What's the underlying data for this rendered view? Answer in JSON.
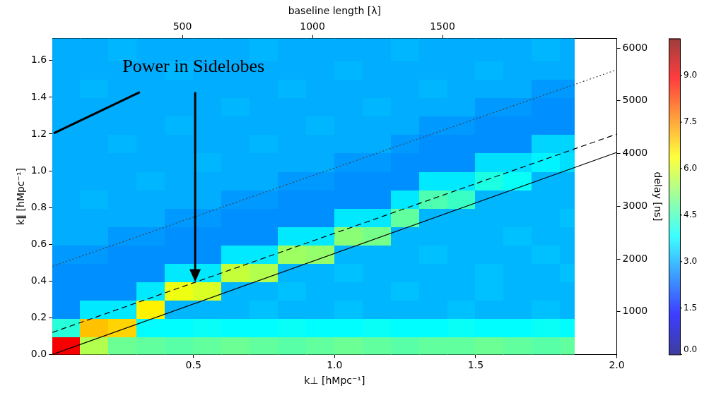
{
  "chart_data": {
    "type": "heatmap",
    "x_label": "k⊥ [hMpc⁻¹]",
    "y_label": "k∥ [hMpc⁻¹]",
    "x2_label": "baseline length [λ]",
    "y2_label": "delay [ns]",
    "xlim": [
      0,
      2.0
    ],
    "xticks": [
      0.5,
      {
        "value": 1,
        "label": "1.0"
      },
      1.5,
      {
        "value": 2,
        "label": "2.0"
      }
    ],
    "ylim": [
      0,
      1.72
    ],
    "yticks": [
      {
        "value": 0,
        "label": "0.0"
      },
      0.2,
      0.4,
      0.6,
      0.8,
      {
        "value": 1,
        "label": "1.0"
      },
      1.2,
      1.4,
      1.6
    ],
    "x2lim": [
      0,
      2170
    ],
    "x2ticks": [
      500,
      1000,
      1500
    ],
    "y2lim": [
      190,
      6180
    ],
    "y2ticks": [
      1000,
      2000,
      3000,
      4000,
      5000,
      6000
    ],
    "grid": false,
    "x_bins": [
      0,
      0.1,
      0.2,
      0.3,
      0.4,
      0.5,
      0.6,
      0.7,
      0.8,
      0.9,
      1.0,
      1.1,
      1.2,
      1.3,
      1.4,
      1.5,
      1.6,
      1.7,
      1.8,
      1.85
    ],
    "y_bins": [
      0,
      0.1,
      0.2,
      0.3,
      0.4,
      0.5,
      0.6,
      0.7,
      0.8,
      0.9,
      1.0,
      1.1,
      1.2,
      1.3,
      1.4,
      1.5,
      1.6,
      1.72
    ],
    "cells": [
      [
        9.0,
        5.6,
        4.9,
        4.8,
        4.7,
        4.8,
        4.9,
        4.8,
        4.7,
        4.8,
        4.9,
        4.8,
        4.7,
        4.8,
        4.8,
        4.9,
        4.8,
        4.7,
        4.8
      ],
      [
        4.2,
        7.0,
        6.8,
        3.8,
        3.8,
        3.9,
        3.8,
        3.8,
        3.9,
        3.8,
        3.8,
        3.9,
        3.8,
        3.8,
        3.9,
        3.8,
        3.8,
        3.9,
        3.8
      ],
      [
        2.7,
        3.6,
        3.6,
        6.5,
        3.1,
        3.1,
        3.1,
        3.2,
        3.1,
        3.1,
        3.2,
        3.1,
        3.1,
        3.1,
        3.2,
        3.1,
        3.1,
        3.2,
        3.1
      ],
      [
        2.7,
        2.7,
        2.7,
        3.6,
        6.2,
        6.0,
        3.1,
        3.1,
        3.2,
        3.1,
        3.1,
        3.1,
        3.2,
        3.1,
        3.1,
        3.2,
        3.1,
        3.1,
        3.1
      ],
      [
        2.7,
        2.7,
        2.7,
        2.7,
        3.6,
        3.6,
        5.8,
        5.6,
        3.1,
        3.1,
        3.2,
        3.1,
        3.1,
        3.1,
        3.1,
        3.2,
        3.1,
        3.1,
        3.2
      ],
      [
        2.8,
        2.8,
        2.7,
        2.7,
        2.7,
        2.7,
        3.6,
        3.6,
        5.4,
        5.3,
        3.1,
        3.1,
        3.1,
        3.2,
        3.1,
        3.1,
        3.1,
        3.2,
        3.1
      ],
      [
        3.0,
        3.0,
        2.8,
        2.8,
        2.7,
        2.7,
        2.7,
        2.7,
        3.6,
        3.6,
        5.2,
        5.0,
        3.1,
        3.1,
        3.1,
        3.1,
        3.2,
        3.1,
        3.1
      ],
      [
        3.0,
        3.0,
        3.0,
        3.0,
        2.8,
        2.8,
        2.7,
        2.7,
        2.7,
        2.7,
        3.6,
        3.6,
        4.8,
        3.1,
        3.1,
        3.1,
        3.1,
        3.1,
        3.2
      ],
      [
        3.0,
        3.1,
        3.0,
        3.0,
        3.0,
        3.0,
        2.8,
        2.8,
        2.7,
        2.7,
        2.7,
        2.7,
        3.6,
        4.6,
        4.4,
        3.1,
        3.1,
        3.1,
        3.1
      ],
      [
        3.0,
        3.0,
        3.0,
        3.1,
        3.0,
        3.0,
        3.0,
        3.0,
        2.8,
        2.8,
        2.7,
        2.7,
        2.7,
        3.6,
        3.6,
        4.1,
        3.9,
        3.1,
        3.1
      ],
      [
        3.0,
        3.0,
        3.0,
        3.0,
        3.0,
        3.1,
        3.0,
        3.0,
        3.0,
        3.0,
        2.8,
        2.8,
        2.7,
        2.7,
        2.7,
        3.5,
        3.5,
        3.7,
        3.5
      ],
      [
        3.0,
        3.0,
        3.1,
        3.0,
        3.0,
        3.0,
        3.0,
        3.1,
        3.0,
        3.0,
        3.0,
        3.0,
        2.8,
        2.7,
        2.7,
        2.7,
        2.7,
        3.4,
        3.4
      ],
      [
        3.0,
        3.0,
        3.0,
        3.0,
        3.1,
        3.0,
        3.0,
        3.0,
        3.0,
        3.1,
        3.0,
        3.0,
        3.0,
        2.8,
        2.8,
        2.7,
        2.7,
        2.7,
        2.7
      ],
      [
        3.0,
        3.0,
        3.0,
        3.0,
        3.0,
        3.0,
        3.1,
        3.0,
        3.0,
        3.0,
        3.0,
        3.1,
        3.0,
        3.0,
        3.0,
        2.8,
        2.8,
        2.7,
        2.7
      ],
      [
        3.0,
        3.1,
        3.0,
        3.0,
        3.0,
        3.0,
        3.0,
        3.0,
        3.1,
        3.0,
        3.0,
        3.0,
        3.0,
        3.1,
        3.0,
        3.0,
        3.0,
        2.8,
        2.8
      ],
      [
        3.0,
        3.0,
        3.0,
        3.0,
        3.1,
        3.0,
        3.0,
        3.0,
        3.0,
        3.0,
        3.1,
        3.0,
        3.0,
        3.0,
        3.0,
        3.1,
        3.0,
        3.0,
        3.0
      ],
      [
        3.0,
        3.0,
        3.1,
        3.0,
        3.0,
        3.0,
        3.0,
        3.1,
        3.0,
        3.0,
        3.0,
        3.0,
        3.1,
        3.0,
        3.0,
        3.0,
        3.0,
        3.1,
        3.0
      ]
    ],
    "colorbar_range": [
      0,
      10.2
    ],
    "colorbar_ticks": [
      {
        "value": 0,
        "label": "0.0"
      },
      1.5,
      {
        "value": 3,
        "label": "3.0"
      },
      4.5,
      {
        "value": 6,
        "label": "6.0"
      },
      7.5,
      {
        "value": 9,
        "label": "9.0"
      }
    ],
    "series": [
      {
        "type": "line",
        "color": "#000000",
        "line_style": "solid",
        "x": [
          0,
          2.0
        ],
        "values": [
          0,
          1.1
        ]
      },
      {
        "type": "line",
        "color": "#000000",
        "line_style": "dashed",
        "x": [
          0,
          2.0
        ],
        "values": [
          0.12,
          1.2
        ]
      },
      {
        "type": "line",
        "color": "#444444",
        "line_style": "dotted",
        "x": [
          0,
          2.0
        ],
        "values": [
          0.48,
          1.55
        ]
      }
    ],
    "annotations": [
      {
        "text": "Power in Sidelobes"
      }
    ]
  }
}
